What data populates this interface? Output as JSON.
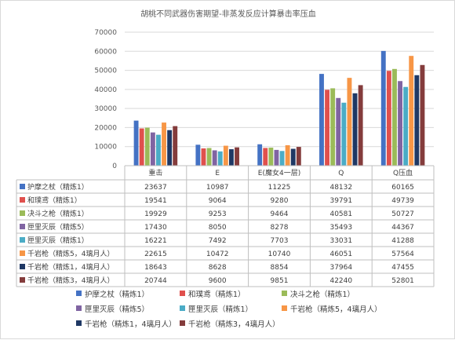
{
  "chart_data": {
    "type": "bar",
    "title": "胡桃不同武器伤害期望-非蒸发反应计算暴击率压血",
    "categories": [
      "重击",
      "E",
      "E(魔女4一层)",
      "Q",
      "Q压血"
    ],
    "ylim": [
      0,
      70000
    ],
    "yticks": [
      0,
      10000,
      20000,
      30000,
      40000,
      50000,
      60000,
      70000
    ],
    "grid": true,
    "legend_position": "bottom",
    "data_table": true,
    "series": [
      {
        "name": "护摩之杖（精炼1）",
        "color": "#4472c4",
        "values": [
          23637,
          10987,
          11225,
          48132,
          60165
        ]
      },
      {
        "name": "和璞鸢（精炼1）",
        "color": "#e0504d",
        "values": [
          19541,
          9064,
          9280,
          39791,
          49739
        ]
      },
      {
        "name": "决斗之枪（精炼1）",
        "color": "#9bbb59",
        "values": [
          19929,
          9253,
          9464,
          40581,
          50727
        ]
      },
      {
        "name": "匣里灭辰（精炼5）",
        "color": "#8064a2",
        "values": [
          17430,
          8050,
          8278,
          35493,
          44367
        ]
      },
      {
        "name": "匣里灭辰（精炼1）",
        "color": "#4bacc6",
        "values": [
          16221,
          7492,
          7703,
          33031,
          41288
        ]
      },
      {
        "name": "千岩枪（精炼5，4璃月人）",
        "color": "#f79646",
        "values": [
          22615,
          10472,
          10740,
          46051,
          57564
        ]
      },
      {
        "name": "千岩枪（精炼1，4璃月人）",
        "color": "#1f3864",
        "values": [
          18643,
          8628,
          8854,
          37964,
          47455
        ]
      },
      {
        "name": "千岩枪（精炼3，4璃月人）",
        "color": "#843c3c",
        "values": [
          20744,
          9600,
          9851,
          42240,
          52801
        ]
      }
    ]
  }
}
